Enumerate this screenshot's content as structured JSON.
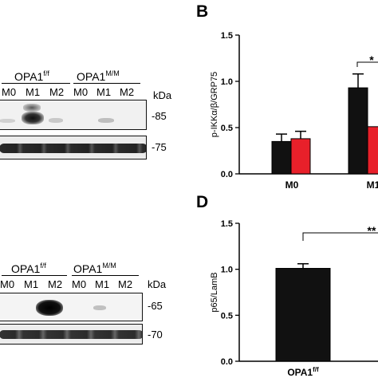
{
  "figure": {
    "blot_top": {
      "group_labels": [
        {
          "name": "OPA1",
          "sup": "f/f"
        },
        {
          "name": "OPA1",
          "sup": "M/M"
        }
      ],
      "lanes": [
        "M0",
        "M1",
        "M2",
        "M0",
        "M1",
        "M2"
      ],
      "unit": "kDa",
      "markers": [
        "-85",
        "-75"
      ]
    },
    "blot_bottom": {
      "group_labels": [
        {
          "name": "OPA1",
          "sup": "f/f"
        },
        {
          "name": "OPA1",
          "sup": "M/M"
        }
      ],
      "lanes": [
        "M0",
        "M1",
        "M2",
        "M0",
        "M1",
        "M2"
      ],
      "unit": "kDa",
      "markers": [
        "-65",
        "-70"
      ]
    },
    "panel_b": {
      "letter": "B"
    },
    "panel_d": {
      "letter": "D"
    }
  },
  "chart_data": [
    {
      "type": "bar",
      "panel": "B",
      "ylabel": "p-IKKα/β/GRP75",
      "ylim": [
        0,
        1.5
      ],
      "yticks": [
        "0.0",
        "0.5",
        "1.0",
        "1.5"
      ],
      "categories": [
        "M0",
        "M1"
      ],
      "series": [
        {
          "color": "#111111",
          "values": [
            0.35,
            0.93
          ],
          "errors": [
            0.08,
            0.15
          ]
        },
        {
          "color": "#e8202a",
          "values": [
            0.38,
            0.51
          ],
          "errors": [
            0.08,
            0.0
          ]
        }
      ],
      "significance": [
        {
          "label": "*",
          "category": "M1"
        }
      ]
    },
    {
      "type": "bar",
      "panel": "D",
      "ylabel": "p65/LamB",
      "ylim": [
        0,
        1.5
      ],
      "yticks": [
        "0.0",
        "0.5",
        "1.0",
        "1.5"
      ],
      "categories": [
        {
          "name": "OPA1",
          "sup": "f/f"
        }
      ],
      "series": [
        {
          "color": "#111111",
          "values": [
            1.01
          ],
          "errors": [
            0.05
          ]
        }
      ],
      "significance": [
        {
          "label": "**",
          "category": "OPA1 f/f"
        }
      ]
    }
  ]
}
